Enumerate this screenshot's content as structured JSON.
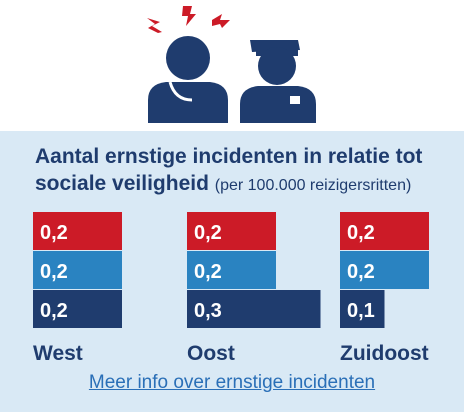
{
  "title": "Aantal ernstige incidenten in relatie tot sociale veiligheid",
  "subtitle": "(per 100.000 reizigersritten)",
  "link_label": "Meer info over ernstige incidenten",
  "icons": [
    "alarmed-passenger-icon",
    "conductor-icon"
  ],
  "colors": {
    "accent": "#cc1b27",
    "series": [
      "#cc1b27",
      "#2a83c1",
      "#1f3c6e"
    ],
    "text": "#1f3c6e",
    "link": "#2a6fb7",
    "panel": "#d9e9f5"
  },
  "chart_data": {
    "type": "bar",
    "orientation": "horizontal",
    "categories": [
      "West",
      "Oost",
      "Zuidoost"
    ],
    "series": [
      {
        "values": [
          0.2,
          0.2,
          0.2
        ],
        "labels": [
          "0,2",
          "0,2",
          "0,2"
        ]
      },
      {
        "values": [
          0.2,
          0.2,
          0.2
        ],
        "labels": [
          "0,2",
          "0,2",
          "0,2"
        ]
      },
      {
        "values": [
          0.2,
          0.3,
          0.1
        ],
        "labels": [
          "0,2",
          "0,3",
          "0,1"
        ]
      }
    ],
    "title": "Aantal ernstige incidenten in relatie tot sociale veiligheid",
    "subtitle": "(per 100.000 reizigersritten)"
  }
}
